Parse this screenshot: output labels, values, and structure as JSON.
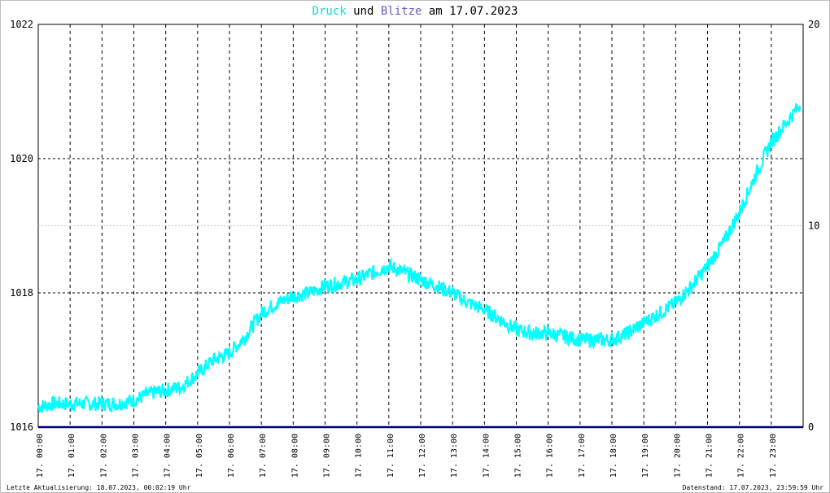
{
  "title": {
    "part1": "Druck",
    "part2": " und ",
    "part3": "Blitze",
    "part4": " am 17.07.2023"
  },
  "footer": {
    "left": "Letzte Aktualisierung: 18.07.2023, 00:02:19 Uhr",
    "right": "Datenstand: 17.07.2023, 23:59:59 Uhr"
  },
  "colors": {
    "pressure": "#00ffff",
    "lightning": "#6a5acd",
    "baseline": "#000080",
    "grid": "#000000",
    "minor_grid": "#c8c8c8"
  },
  "chart_data": {
    "type": "line",
    "title": "Druck und Blitze am 17.07.2023",
    "y_left": {
      "min": 1016,
      "max": 1022,
      "ticks": [
        1016,
        1018,
        1020,
        1022
      ]
    },
    "y_right": {
      "min": 0,
      "max": 20,
      "ticks": [
        0,
        10,
        20
      ]
    },
    "x_ticks": [
      "17. 00:00",
      "17. 01:00",
      "17. 02:00",
      "17. 03:00",
      "17. 04:00",
      "17. 05:00",
      "17. 06:00",
      "17. 07:00",
      "17. 08:00",
      "17. 09:00",
      "17. 10:00",
      "17. 11:00",
      "17. 12:00",
      "17. 13:00",
      "17. 14:00",
      "17. 15:00",
      "17. 16:00",
      "17. 17:00",
      "17. 18:00",
      "17. 19:00",
      "17. 20:00",
      "17. 21:00",
      "17. 22:00",
      "17. 23:00"
    ],
    "grid": true,
    "series": [
      {
        "name": "Druck",
        "axis": "left",
        "hours": [
          0,
          0.5,
          1,
          1.5,
          2,
          2.5,
          3,
          3.5,
          4,
          4.5,
          5,
          5.5,
          6,
          6.5,
          7,
          7.5,
          8,
          8.5,
          9,
          9.5,
          10,
          10.5,
          11,
          11.5,
          12,
          12.5,
          13,
          13.5,
          14,
          14.5,
          15,
          15.5,
          16,
          16.5,
          17,
          17.5,
          18,
          18.5,
          19,
          19.5,
          20,
          20.5,
          21,
          21.5,
          22,
          22.5,
          23,
          23.5,
          23.9
        ],
        "values": [
          1016.3,
          1016.35,
          1016.35,
          1016.35,
          1016.35,
          1016.35,
          1016.4,
          1016.5,
          1016.55,
          1016.6,
          1016.8,
          1017.0,
          1017.1,
          1017.35,
          1017.7,
          1017.85,
          1017.95,
          1018.0,
          1018.1,
          1018.15,
          1018.2,
          1018.3,
          1018.4,
          1018.3,
          1018.2,
          1018.1,
          1018.0,
          1017.85,
          1017.75,
          1017.6,
          1017.45,
          1017.4,
          1017.4,
          1017.35,
          1017.3,
          1017.3,
          1017.3,
          1017.4,
          1017.55,
          1017.7,
          1017.85,
          1018.1,
          1018.4,
          1018.75,
          1019.2,
          1019.75,
          1020.25,
          1020.55,
          1020.8
        ]
      },
      {
        "name": "Blitze",
        "axis": "right",
        "hours": [
          0,
          23.9
        ],
        "values": [
          0,
          0
        ]
      }
    ]
  }
}
